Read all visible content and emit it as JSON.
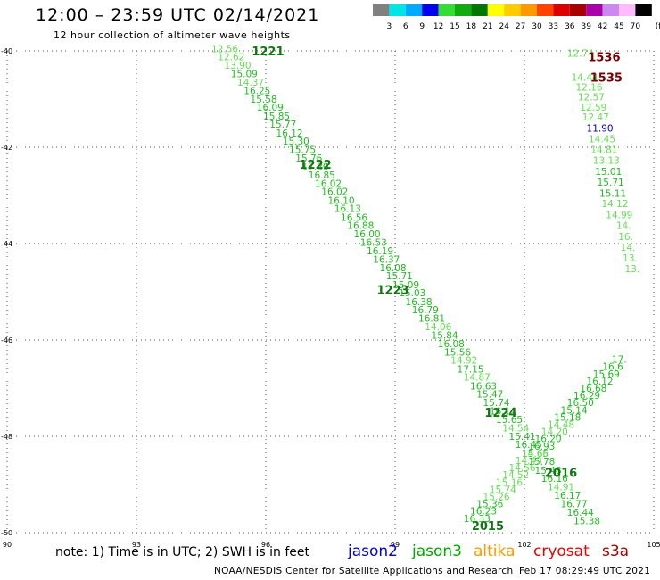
{
  "header": {
    "title": "12:00 – 23:59 UTC 02/14/2021",
    "subtitle": "12 hour collection of altimeter wave heights"
  },
  "legend": {
    "unit_label": "(ft)",
    "bins": [
      {
        "label": "3",
        "color": "#808080"
      },
      {
        "label": "6",
        "color": "#00e5e5"
      },
      {
        "label": "9",
        "color": "#00aaff"
      },
      {
        "label": "12",
        "color": "#0000ee"
      },
      {
        "label": "15",
        "color": "#33dd33"
      },
      {
        "label": "18",
        "color": "#11aa11"
      },
      {
        "label": "21",
        "color": "#007700"
      },
      {
        "label": "24",
        "color": "#ffff00"
      },
      {
        "label": "27",
        "color": "#ffcc00"
      },
      {
        "label": "30",
        "color": "#ff9900"
      },
      {
        "label": "33",
        "color": "#ff4400"
      },
      {
        "label": "36",
        "color": "#dd0000"
      },
      {
        "label": "39",
        "color": "#aa0000"
      },
      {
        "label": "42",
        "color": "#aa00aa"
      },
      {
        "label": "45",
        "color": "#cc88ee"
      },
      {
        "label": "70",
        "color": "#ffbbff"
      },
      {
        "label": "",
        "color": "#000000"
      }
    ]
  },
  "axes": {
    "lon_ticks": [
      "90",
      "93",
      "96",
      "99",
      "102",
      "105"
    ],
    "lat_ticks": [
      "-40",
      "-42",
      "-44",
      "-46",
      "-48",
      "-50"
    ]
  },
  "tracks": {
    "colors": {
      "light": "#66dd55",
      "green": "#22bb22",
      "dark": "#117711",
      "blue": "#0000bb",
      "maroon": "#770000"
    },
    "pass_labels": [
      {
        "text": "1221",
        "lon": 96.05,
        "lat": -40.0,
        "color": "dark"
      },
      {
        "text": "1222",
        "lon": 97.15,
        "lat": -42.35,
        "color": "dark"
      },
      {
        "text": "1223",
        "lon": 98.95,
        "lat": -44.95,
        "color": "dark"
      },
      {
        "text": "1224",
        "lon": 101.45,
        "lat": -47.5,
        "color": "dark"
      },
      {
        "text": "2016",
        "lon": 102.85,
        "lat": -48.75,
        "color": "dark"
      },
      {
        "text": "2015",
        "lon": 101.15,
        "lat": -49.85,
        "color": "dark"
      },
      {
        "text": "1536",
        "lon": 103.85,
        "lat": -40.12,
        "color": "maroon"
      },
      {
        "text": "1535",
        "lon": 103.9,
        "lat": -40.55,
        "color": "maroon"
      }
    ],
    "values": [
      {
        "t": "12.56",
        "lon": 95.05,
        "lat": -39.95,
        "c": "light"
      },
      {
        "t": "12.62",
        "lon": 95.2,
        "lat": -40.12,
        "c": "light"
      },
      {
        "t": "13.90",
        "lon": 95.35,
        "lat": -40.3,
        "c": "light"
      },
      {
        "t": "15.09",
        "lon": 95.5,
        "lat": -40.47,
        "c": "green"
      },
      {
        "t": "14.37",
        "lon": 95.65,
        "lat": -40.65,
        "c": "light"
      },
      {
        "t": "16.25",
        "lon": 95.8,
        "lat": -40.82,
        "c": "green"
      },
      {
        "t": "15.58",
        "lon": 95.95,
        "lat": -41.0,
        "c": "green"
      },
      {
        "t": "16.09",
        "lon": 96.1,
        "lat": -41.17,
        "c": "green"
      },
      {
        "t": "15.85",
        "lon": 96.25,
        "lat": -41.35,
        "c": "green"
      },
      {
        "t": "15.77",
        "lon": 96.4,
        "lat": -41.52,
        "c": "green"
      },
      {
        "t": "16.12",
        "lon": 96.55,
        "lat": -41.7,
        "c": "green"
      },
      {
        "t": "15.30",
        "lon": 96.7,
        "lat": -41.87,
        "c": "green"
      },
      {
        "t": "15.75",
        "lon": 96.85,
        "lat": -42.05,
        "c": "green"
      },
      {
        "t": "15.76",
        "lon": 97.0,
        "lat": -42.22,
        "c": "green"
      },
      {
        "t": "17.30",
        "lon": 97.15,
        "lat": -42.4,
        "c": "green"
      },
      {
        "t": "16.85",
        "lon": 97.3,
        "lat": -42.57,
        "c": "green"
      },
      {
        "t": "16.02",
        "lon": 97.45,
        "lat": -42.75,
        "c": "green"
      },
      {
        "t": "16.02",
        "lon": 97.6,
        "lat": -42.92,
        "c": "green"
      },
      {
        "t": "16.10",
        "lon": 97.75,
        "lat": -43.1,
        "c": "green"
      },
      {
        "t": "16.13",
        "lon": 97.9,
        "lat": -43.27,
        "c": "green"
      },
      {
        "t": "16.56",
        "lon": 98.05,
        "lat": -43.45,
        "c": "green"
      },
      {
        "t": "16.88",
        "lon": 98.2,
        "lat": -43.62,
        "c": "green"
      },
      {
        "t": "16.00",
        "lon": 98.35,
        "lat": -43.8,
        "c": "green"
      },
      {
        "t": "16.53",
        "lon": 98.5,
        "lat": -43.97,
        "c": "green"
      },
      {
        "t": "16.19",
        "lon": 98.65,
        "lat": -44.15,
        "c": "green"
      },
      {
        "t": "16.37",
        "lon": 98.8,
        "lat": -44.32,
        "c": "green"
      },
      {
        "t": "16.08",
        "lon": 98.95,
        "lat": -44.5,
        "c": "green"
      },
      {
        "t": "15.71",
        "lon": 99.1,
        "lat": -44.67,
        "c": "green"
      },
      {
        "t": "15.09",
        "lon": 99.25,
        "lat": -44.85,
        "c": "green"
      },
      {
        "t": "15.03",
        "lon": 99.4,
        "lat": -45.02,
        "c": "green"
      },
      {
        "t": "16.38",
        "lon": 99.55,
        "lat": -45.2,
        "c": "green"
      },
      {
        "t": "16.79",
        "lon": 99.7,
        "lat": -45.37,
        "c": "green"
      },
      {
        "t": "16.81",
        "lon": 99.85,
        "lat": -45.55,
        "c": "green"
      },
      {
        "t": "14.06",
        "lon": 100.0,
        "lat": -45.72,
        "c": "light"
      },
      {
        "t": "15.84",
        "lon": 100.15,
        "lat": -45.9,
        "c": "green"
      },
      {
        "t": "16.08",
        "lon": 100.3,
        "lat": -46.07,
        "c": "green"
      },
      {
        "t": "15.56",
        "lon": 100.45,
        "lat": -46.25,
        "c": "green"
      },
      {
        "t": "14.92",
        "lon": 100.6,
        "lat": -46.42,
        "c": "light"
      },
      {
        "t": "17.15",
        "lon": 100.75,
        "lat": -46.6,
        "c": "green"
      },
      {
        "t": "14.87",
        "lon": 100.9,
        "lat": -46.77,
        "c": "light"
      },
      {
        "t": "16.63",
        "lon": 101.05,
        "lat": -46.95,
        "c": "green"
      },
      {
        "t": "15.47",
        "lon": 101.2,
        "lat": -47.12,
        "c": "green"
      },
      {
        "t": "15.74",
        "lon": 101.35,
        "lat": -47.3,
        "c": "green"
      },
      {
        "t": "16.14",
        "lon": 101.5,
        "lat": -47.47,
        "c": "green"
      },
      {
        "t": "15.65",
        "lon": 101.65,
        "lat": -47.65,
        "c": "green"
      },
      {
        "t": "14.54",
        "lon": 101.8,
        "lat": -47.82,
        "c": "light"
      },
      {
        "t": "15.41",
        "lon": 101.95,
        "lat": -48.0,
        "c": "green"
      },
      {
        "t": "16.45",
        "lon": 102.1,
        "lat": -48.17,
        "c": "green"
      },
      {
        "t": "15.65",
        "lon": 102.25,
        "lat": -48.35,
        "c": "green"
      },
      {
        "t": "15.78",
        "lon": 102.4,
        "lat": -48.52,
        "c": "green"
      },
      {
        "t": "15.48",
        "lon": 102.55,
        "lat": -48.7,
        "c": "green"
      },
      {
        "t": "16.16",
        "lon": 102.7,
        "lat": -48.87,
        "c": "green"
      },
      {
        "t": "14.91",
        "lon": 102.85,
        "lat": -49.05,
        "c": "light"
      },
      {
        "t": "16.17",
        "lon": 103.0,
        "lat": -49.22,
        "c": "green"
      },
      {
        "t": "16.77",
        "lon": 103.15,
        "lat": -49.4,
        "c": "green"
      },
      {
        "t": "16.44",
        "lon": 103.3,
        "lat": -49.57,
        "c": "green"
      },
      {
        "t": "15.38",
        "lon": 103.45,
        "lat": -49.75,
        "c": "green"
      },
      {
        "t": "16.33",
        "lon": 100.9,
        "lat": -49.7,
        "c": "green"
      },
      {
        "t": "16.23",
        "lon": 101.05,
        "lat": -49.55,
        "c": "green"
      },
      {
        "t": "15.36",
        "lon": 101.2,
        "lat": -49.4,
        "c": "green"
      },
      {
        "t": "15.26",
        "lon": 101.35,
        "lat": -49.25,
        "c": "light"
      },
      {
        "t": "15.74",
        "lon": 101.5,
        "lat": -49.1,
        "c": "light"
      },
      {
        "t": "15.16",
        "lon": 101.65,
        "lat": -48.95,
        "c": "light"
      },
      {
        "t": "14.52",
        "lon": 101.8,
        "lat": -48.8,
        "c": "light"
      },
      {
        "t": "14.56",
        "lon": 101.95,
        "lat": -48.65,
        "c": "light"
      },
      {
        "t": "14.43",
        "lon": 102.1,
        "lat": -48.5,
        "c": "light"
      },
      {
        "t": "14.66",
        "lon": 102.25,
        "lat": -48.35,
        "c": "light"
      },
      {
        "t": "16.93",
        "lon": 102.4,
        "lat": -48.2,
        "c": "green"
      },
      {
        "t": "16.20",
        "lon": 102.55,
        "lat": -48.05,
        "c": "green"
      },
      {
        "t": "14.20",
        "lon": 102.7,
        "lat": -47.9,
        "c": "light"
      },
      {
        "t": "14.48",
        "lon": 102.85,
        "lat": -47.75,
        "c": "light"
      },
      {
        "t": "15.18",
        "lon": 103.0,
        "lat": -47.6,
        "c": "green"
      },
      {
        "t": "15.14",
        "lon": 103.15,
        "lat": -47.45,
        "c": "green"
      },
      {
        "t": "16.50",
        "lon": 103.3,
        "lat": -47.3,
        "c": "green"
      },
      {
        "t": "16.29",
        "lon": 103.45,
        "lat": -47.15,
        "c": "green"
      },
      {
        "t": "16.68",
        "lon": 103.6,
        "lat": -47.0,
        "c": "green"
      },
      {
        "t": "16.12",
        "lon": 103.75,
        "lat": -46.85,
        "c": "green"
      },
      {
        "t": "15.69",
        "lon": 103.9,
        "lat": -46.7,
        "c": "green"
      },
      {
        "t": "16.6",
        "lon": 104.05,
        "lat": -46.55,
        "c": "green"
      },
      {
        "t": "17.",
        "lon": 104.2,
        "lat": -46.4,
        "c": "green"
      },
      {
        "t": "12.74",
        "lon": 103.3,
        "lat": -40.05,
        "c": "light"
      },
      {
        "t": "14.44",
        "lon": 103.4,
        "lat": -40.55,
        "c": "light"
      },
      {
        "t": "12.16",
        "lon": 103.5,
        "lat": -40.75,
        "c": "light"
      },
      {
        "t": "12.57",
        "lon": 103.55,
        "lat": -40.95,
        "c": "light"
      },
      {
        "t": "12.59",
        "lon": 103.6,
        "lat": -41.17,
        "c": "light"
      },
      {
        "t": "12.47",
        "lon": 103.65,
        "lat": -41.37,
        "c": "light"
      },
      {
        "t": "11.90",
        "lon": 103.75,
        "lat": -41.6,
        "c": "blue"
      },
      {
        "t": "14.45",
        "lon": 103.8,
        "lat": -41.82,
        "c": "light"
      },
      {
        "t": "14.81",
        "lon": 103.85,
        "lat": -42.05,
        "c": "light"
      },
      {
        "t": "13.13",
        "lon": 103.9,
        "lat": -42.27,
        "c": "light"
      },
      {
        "t": "15.01",
        "lon": 103.95,
        "lat": -42.5,
        "c": "green"
      },
      {
        "t": "15.71",
        "lon": 104.0,
        "lat": -42.72,
        "c": "green"
      },
      {
        "t": "15.11",
        "lon": 104.05,
        "lat": -42.95,
        "c": "green"
      },
      {
        "t": "14.12",
        "lon": 104.1,
        "lat": -43.17,
        "c": "light"
      },
      {
        "t": "14.99",
        "lon": 104.2,
        "lat": -43.4,
        "c": "light"
      },
      {
        "t": "14.",
        "lon": 104.3,
        "lat": -43.62,
        "c": "light"
      },
      {
        "t": "16.",
        "lon": 104.35,
        "lat": -43.85,
        "c": "light"
      },
      {
        "t": "14.",
        "lon": 104.4,
        "lat": -44.07,
        "c": "light"
      },
      {
        "t": "13.",
        "lon": 104.45,
        "lat": -44.3,
        "c": "light"
      },
      {
        "t": "13.",
        "lon": 104.5,
        "lat": -44.52,
        "c": "light"
      }
    ]
  },
  "footer": {
    "note": "note:  1) Time is in UTC;  2) SWH is in feet",
    "satellites": [
      {
        "name": "jason2",
        "color": "#0000dd"
      },
      {
        "name": "jason3",
        "color": "#00aa00"
      },
      {
        "name": "altika",
        "color": "#ff9900"
      },
      {
        "name": "cryosat",
        "color": "#ee0000"
      },
      {
        "name": "s3a",
        "color": "#aa0000"
      }
    ],
    "credit": "NOAA/NESDIS Center for Satellite Applications and Research",
    "timestamp": "Feb 17 08:29:49 UTC 2021"
  }
}
